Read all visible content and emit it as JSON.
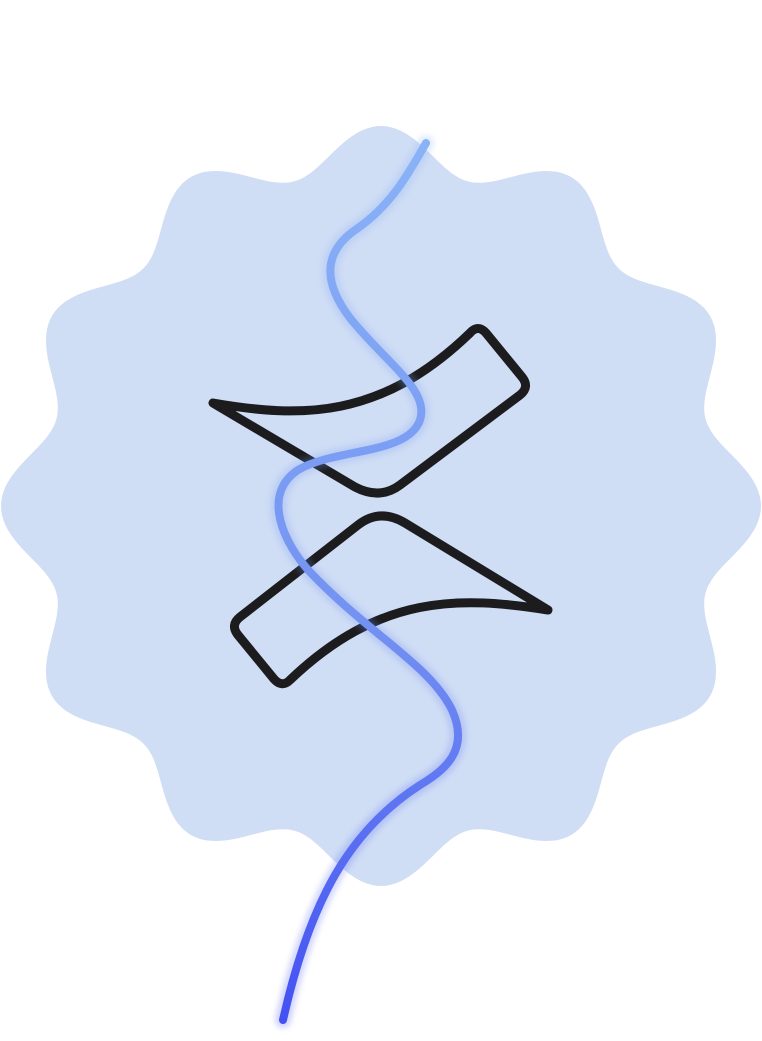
{
  "illustration": {
    "icon": "wavy-line-through-twin-shapes",
    "colors": {
      "background": "#ffffff",
      "badge_fill": "#cfddf5",
      "outline": "#1c1c1e",
      "line_top": "#8ab3f6",
      "line_mid": "#7391f2",
      "line_bottom": "#4350f2"
    }
  }
}
